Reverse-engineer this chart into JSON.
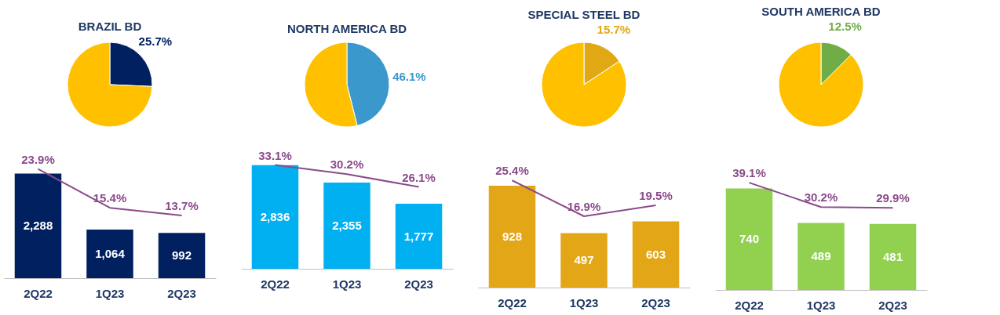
{
  "chart_data": [
    {
      "type": "pie",
      "title": "BRAZIL BD",
      "categories": [
        null,
        null
      ],
      "values": [
        25.7,
        74.3
      ],
      "colors": [
        "#002060",
        "#ffc000"
      ],
      "value_labels": [
        "25.7%",
        null
      ]
    },
    {
      "type": "bar",
      "categories": [
        "2Q22",
        "1Q23",
        "2Q23"
      ],
      "tick_labels": "x",
      "series": [
        {
          "type": "bar",
          "color": "#002060",
          "values": [
            2288,
            1064,
            992
          ],
          "value_labels": [
            "2,288",
            "1,064",
            "992"
          ]
        },
        {
          "type": "line",
          "axis": "y2",
          "color": "#8b4a8b",
          "values": [
            23.9,
            15.4,
            13.7
          ],
          "value_labels": [
            "23.9%",
            "15.4%",
            "13.7%"
          ]
        }
      ]
    },
    {
      "type": "pie",
      "title": "NORTH AMERICA BD",
      "categories": [
        null,
        null
      ],
      "values": [
        46.1,
        53.9
      ],
      "colors": [
        "#3a98cc",
        "#ffc000"
      ],
      "value_labels": [
        "46.1%",
        null
      ]
    },
    {
      "type": "bar",
      "categories": [
        "2Q22",
        "1Q23",
        "2Q23"
      ],
      "tick_labels": "x",
      "series": [
        {
          "type": "bar",
          "color": "#00b0f0",
          "values": [
            2836,
            2355,
            1777
          ],
          "value_labels": [
            "2,836",
            "2,355",
            "1,777"
          ]
        },
        {
          "type": "line",
          "axis": "y2",
          "color": "#8b4a8b",
          "values": [
            33.1,
            30.2,
            26.1
          ],
          "value_labels": [
            "33.1%",
            "30.2%",
            "26.1%"
          ]
        }
      ]
    },
    {
      "type": "pie",
      "title": "SPECIAL STEEL BD",
      "categories": [
        null,
        null
      ],
      "values": [
        15.7,
        84.3
      ],
      "colors": [
        "#e0a812",
        "#ffc000"
      ],
      "value_labels": [
        "15.7%",
        null
      ]
    },
    {
      "type": "bar",
      "categories": [
        "2Q22",
        "1Q23",
        "2Q23"
      ],
      "tick_labels": "x",
      "series": [
        {
          "type": "bar",
          "color": "#e3a617",
          "values": [
            928,
            497,
            603
          ],
          "value_labels": [
            "928",
            "497",
            "603"
          ]
        },
        {
          "type": "line",
          "axis": "y2",
          "color": "#8b4a8b",
          "values": [
            25.4,
            16.9,
            19.5
          ],
          "value_labels": [
            "25.4%",
            "16.9%",
            "19.5%"
          ]
        }
      ]
    },
    {
      "type": "pie",
      "title": "SOUTH AMERICA BD",
      "categories": [
        null,
        null
      ],
      "values": [
        12.5,
        87.5
      ],
      "colors": [
        "#70ad47",
        "#ffc000"
      ],
      "value_labels": [
        "12.5%",
        null
      ]
    },
    {
      "type": "bar",
      "categories": [
        "2Q22",
        "1Q23",
        "2Q23"
      ],
      "tick_labels": "x",
      "series": [
        {
          "type": "bar",
          "color": "#92d050",
          "values": [
            740,
            489,
            481
          ],
          "value_labels": [
            "740",
            "489",
            "481"
          ]
        },
        {
          "type": "line",
          "axis": "y2",
          "color": "#8b4a8b",
          "values": [
            39.1,
            30.2,
            29.9
          ],
          "value_labels": [
            "39.1%",
            "30.2%",
            "29.9%"
          ]
        }
      ]
    }
  ]
}
